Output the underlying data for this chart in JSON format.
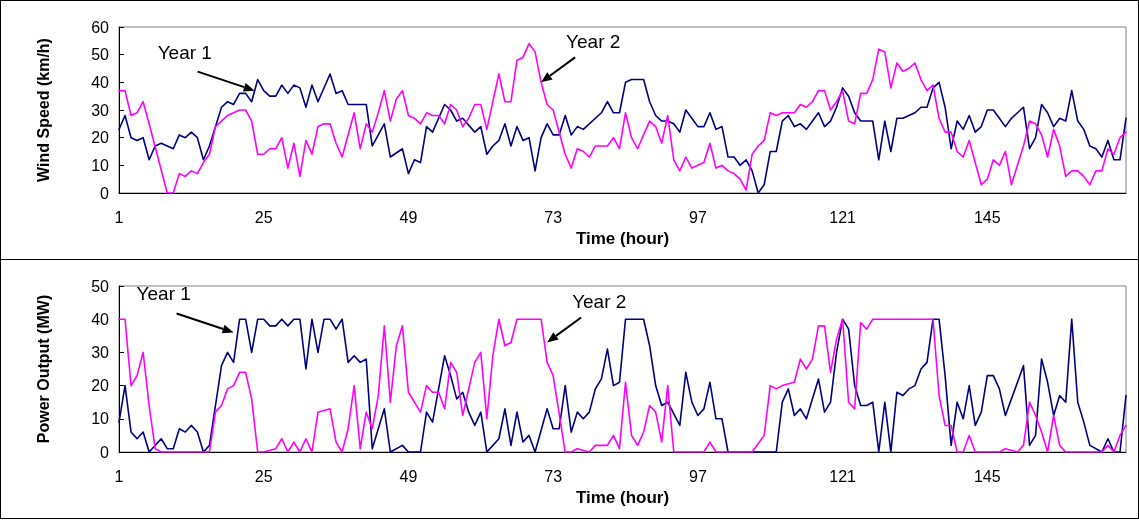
{
  "chart_data": [
    {
      "type": "line",
      "xlabel": "Time (hour)",
      "ylabel": "Wind Speed (km/h)",
      "xlim": [
        1,
        168
      ],
      "xticks": [
        1,
        25,
        49,
        73,
        97,
        121,
        145
      ],
      "ylim": [
        0,
        60
      ],
      "yticks": [
        0,
        10,
        20,
        30,
        40,
        50,
        60
      ],
      "grid": false,
      "marker": "none",
      "line_style": "solid",
      "annotations": [
        {
          "text": "Year 1",
          "x": 23.5,
          "y": 37
        },
        {
          "text": "Year 2",
          "x": 71,
          "y": 40
        }
      ],
      "series": [
        {
          "color": "#000080",
          "x": [
            1,
            2,
            3,
            4,
            5,
            6,
            7,
            8,
            9,
            10,
            11,
            12,
            13,
            14,
            15,
            16,
            18,
            19,
            20,
            21,
            22,
            23,
            24,
            25,
            26,
            27,
            28,
            29,
            30,
            31,
            32,
            33,
            34,
            36,
            37,
            38,
            39,
            40,
            41,
            42,
            43,
            45,
            46,
            48,
            49,
            50,
            51,
            52,
            53,
            55,
            56,
            57,
            58,
            60,
            61,
            62,
            63,
            64,
            65,
            66,
            67,
            68,
            69,
            70,
            71,
            72,
            73,
            74,
            75,
            76,
            77,
            78,
            81,
            82,
            83,
            84,
            85,
            86,
            88,
            89,
            90,
            91,
            92,
            93,
            94,
            95,
            96,
            97,
            98,
            99,
            100,
            101,
            102,
            103,
            104,
            105,
            106,
            107,
            108,
            109,
            110,
            111,
            112,
            113,
            114,
            115,
            116,
            117,
            118,
            119,
            120,
            121,
            122,
            123,
            124,
            126,
            127,
            128,
            129,
            130,
            131,
            132,
            133,
            134,
            135,
            136,
            137,
            138,
            139,
            140,
            141,
            142,
            143,
            144,
            145,
            146,
            147,
            148,
            149,
            150,
            151,
            152,
            153,
            154,
            155,
            156,
            157,
            158,
            159,
            160,
            161,
            162,
            163,
            164,
            165,
            166,
            167,
            168
          ],
          "values": [
            23,
            28,
            20,
            19,
            20,
            12,
            17,
            18,
            17,
            16,
            21,
            20,
            22,
            20,
            12,
            17,
            31,
            33,
            32,
            36,
            36,
            33,
            41,
            37,
            35,
            35,
            39,
            36,
            39,
            38,
            31,
            39,
            33,
            43,
            36,
            37,
            32,
            32,
            32,
            32,
            17,
            25,
            13,
            16,
            7,
            12,
            11,
            24,
            22,
            32,
            30,
            26,
            27,
            22,
            24,
            14,
            17,
            19,
            25,
            17,
            24,
            19,
            20,
            8,
            20,
            25,
            21,
            21,
            28,
            21,
            24,
            23,
            29,
            33,
            29,
            29,
            40,
            41,
            41,
            33,
            28,
            26,
            26,
            25,
            22,
            30,
            27,
            24,
            24,
            29,
            23,
            24,
            13,
            13,
            10,
            12,
            8,
            0,
            3,
            15,
            15,
            26,
            28,
            24,
            25,
            23,
            26,
            29,
            24,
            26,
            31,
            38,
            35,
            29,
            26,
            26,
            12,
            26,
            15,
            27,
            27,
            28,
            29,
            31,
            31,
            38,
            40,
            31,
            16,
            26,
            23,
            28,
            22,
            24,
            30,
            30,
            27,
            24,
            27,
            29,
            31,
            16,
            20,
            32,
            29,
            24,
            27,
            26,
            37,
            26,
            23,
            17,
            16,
            13,
            19,
            12,
            12,
            27
          ]
        },
        {
          "color": "#ff00ff",
          "x": [
            1,
            2,
            3,
            4,
            5,
            6,
            9,
            10,
            11,
            12,
            13,
            14,
            15,
            16,
            17,
            18,
            19,
            20,
            21,
            22,
            23,
            24,
            25,
            26,
            27,
            28,
            29,
            30,
            31,
            32,
            33,
            34,
            35,
            36,
            37,
            38,
            40,
            41,
            42,
            43,
            44,
            45,
            46,
            47,
            48,
            49,
            50,
            51,
            52,
            53,
            54,
            55,
            56,
            57,
            58,
            59,
            60,
            61,
            62,
            64,
            65,
            66,
            67,
            68,
            69,
            70,
            71,
            72,
            73,
            75,
            76,
            77,
            78,
            79,
            80,
            81,
            82,
            83,
            84,
            85,
            86,
            87,
            88,
            89,
            90,
            91,
            92,
            93,
            94,
            95,
            96,
            98,
            99,
            100,
            101,
            102,
            103,
            104,
            105,
            106,
            107,
            108,
            109,
            110,
            111,
            113,
            114,
            115,
            116,
            117,
            118,
            119,
            120,
            121,
            122,
            123,
            124,
            125,
            126,
            127,
            128,
            129,
            130,
            131,
            132,
            133,
            134,
            135,
            136,
            137,
            138,
            139,
            140,
            141,
            142,
            144,
            145,
            146,
            147,
            148,
            149,
            150,
            151,
            152,
            153,
            154,
            155,
            156,
            157,
            158,
            159,
            160,
            161,
            162,
            163,
            164,
            165,
            166,
            167,
            168
          ],
          "values": [
            37,
            37,
            28,
            29,
            33,
            25,
            0,
            0,
            7,
            6,
            8,
            7,
            11,
            14,
            24,
            26,
            28,
            29,
            30,
            30,
            26,
            14,
            14,
            16,
            16,
            20,
            9,
            18,
            6,
            19,
            14,
            24,
            25,
            25,
            18,
            13,
            29,
            16,
            25,
            22,
            29,
            37,
            26,
            34,
            37,
            28,
            27,
            25,
            29,
            28,
            28,
            25,
            32,
            30,
            24,
            27,
            32,
            32,
            23,
            43,
            33,
            33,
            48,
            49,
            54,
            51,
            40,
            32,
            30,
            14,
            9,
            16,
            15,
            13,
            17,
            17,
            17,
            20,
            16,
            29,
            20,
            16,
            21,
            26,
            24,
            18,
            28,
            12,
            8,
            13,
            9,
            11,
            18,
            9,
            10,
            8,
            7,
            5,
            1,
            14,
            17,
            19,
            29,
            28,
            29,
            29,
            32,
            31,
            33,
            37,
            37,
            30,
            33,
            37,
            26,
            25,
            36,
            36,
            41,
            52,
            51,
            38,
            47,
            44,
            45,
            47,
            41,
            37,
            39,
            27,
            22,
            22,
            15,
            13,
            19,
            3,
            5,
            12,
            10,
            15,
            3,
            10,
            17,
            26,
            25,
            21,
            13,
            23,
            17,
            6,
            8,
            8,
            6,
            3,
            8,
            8,
            16,
            14,
            20,
            22
          ]
        }
      ]
    },
    {
      "type": "line",
      "xlabel": "Time (hour)",
      "ylabel": "Power Output (MW)",
      "xlim": [
        1,
        168
      ],
      "xticks": [
        1,
        25,
        49,
        73,
        97,
        121,
        145
      ],
      "ylim": [
        0,
        50
      ],
      "yticks": [
        0,
        10,
        20,
        30,
        40,
        50
      ],
      "grid": false,
      "marker": "none",
      "line_style": "solid",
      "annotations": [
        {
          "text": "Year 1",
          "x": 20,
          "y": 36
        },
        {
          "text": "Year 2",
          "x": 72,
          "y": 33
        }
      ],
      "series": [
        {
          "color": "#000080",
          "x": [
            1,
            2,
            3,
            4,
            5,
            6,
            8,
            9,
            10,
            11,
            12,
            13,
            14,
            15,
            16,
            18,
            19,
            20,
            21,
            22,
            23,
            24,
            25,
            26,
            27,
            28,
            29,
            30,
            31,
            32,
            33,
            34,
            35,
            36,
            37,
            38,
            39,
            40,
            41,
            42,
            43,
            45,
            46,
            48,
            49,
            51,
            52,
            53,
            55,
            56,
            57,
            58,
            59,
            60,
            61,
            62,
            63,
            64,
            65,
            66,
            67,
            68,
            69,
            70,
            72,
            73,
            74,
            75,
            76,
            77,
            78,
            79,
            80,
            81,
            82,
            83,
            84,
            85,
            88,
            89,
            90,
            91,
            92,
            94,
            95,
            96,
            97,
            98,
            99,
            100,
            101,
            102,
            106,
            110,
            111,
            112,
            113,
            114,
            115,
            117,
            118,
            119,
            120,
            121,
            122,
            123,
            124,
            125,
            126,
            127,
            128,
            129,
            130,
            131,
            132,
            133,
            134,
            135,
            136,
            137,
            138,
            139,
            140,
            141,
            142,
            143,
            144,
            145,
            146,
            147,
            148,
            149,
            151,
            152,
            153,
            154,
            155,
            156,
            157,
            158,
            159,
            160,
            161,
            162,
            164,
            165,
            166,
            167,
            168
          ],
          "values": [
            9,
            20,
            6,
            4,
            6,
            0,
            4,
            1,
            1,
            7,
            6,
            8,
            6,
            0,
            2,
            26,
            30,
            27,
            40,
            40,
            30,
            40,
            40,
            38,
            38,
            40,
            38,
            40,
            40,
            25,
            40,
            30,
            40,
            40,
            37,
            40,
            27,
            29,
            27,
            28,
            1,
            13,
            0,
            2,
            0,
            0,
            12,
            9,
            29,
            23,
            16,
            18,
            12,
            8,
            12,
            0,
            2,
            4,
            13,
            2,
            12,
            3,
            5,
            0,
            13,
            7,
            7,
            20,
            6,
            12,
            10,
            12,
            19,
            22,
            31,
            20,
            21,
            40,
            40,
            32,
            20,
            14,
            15,
            8,
            24,
            15,
            11,
            13,
            21,
            10,
            10,
            0,
            0,
            0,
            15,
            19,
            11,
            13,
            10,
            22,
            12,
            15,
            30,
            40,
            37,
            20,
            14,
            14,
            15,
            0,
            15,
            0,
            18,
            17,
            19,
            20,
            25,
            27,
            40,
            40,
            23,
            2,
            15,
            10,
            20,
            8,
            12,
            23,
            23,
            19,
            11,
            16,
            26,
            2,
            5,
            28,
            21,
            11,
            17,
            15,
            40,
            15,
            9,
            2,
            0,
            4,
            0,
            0,
            17
          ]
        },
        {
          "color": "#ff00ff",
          "x": [
            1,
            2,
            3,
            4,
            5,
            6,
            7,
            8,
            16,
            17,
            18,
            19,
            20,
            21,
            22,
            23,
            24,
            25,
            27,
            28,
            29,
            30,
            31,
            32,
            33,
            34,
            36,
            37,
            38,
            39,
            40,
            41,
            42,
            43,
            44,
            45,
            46,
            47,
            48,
            49,
            51,
            52,
            53,
            54,
            55,
            56,
            57,
            58,
            60,
            61,
            62,
            63,
            64,
            65,
            66,
            67,
            71,
            72,
            73,
            75,
            76,
            77,
            79,
            80,
            81,
            82,
            83,
            84,
            85,
            86,
            87,
            88,
            89,
            90,
            91,
            92,
            93,
            98,
            99,
            100,
            106,
            108,
            109,
            110,
            111,
            113,
            114,
            115,
            116,
            117,
            118,
            119,
            120,
            121,
            122,
            123,
            124,
            125,
            126,
            136,
            137,
            138,
            139,
            140,
            141,
            142,
            143,
            147,
            148,
            150,
            151,
            152,
            153,
            154,
            155,
            156,
            157,
            158,
            164,
            165,
            166,
            167,
            168
          ],
          "values": [
            40,
            40,
            20,
            23,
            30,
            14,
            1,
            0,
            0,
            12,
            14,
            19,
            20,
            24,
            24,
            16,
            0,
            0,
            1,
            4,
            0,
            3,
            0,
            4,
            0,
            12,
            13,
            3,
            0,
            7,
            20,
            1,
            12,
            7,
            17,
            38,
            15,
            32,
            38,
            18,
            12,
            20,
            18,
            18,
            13,
            27,
            24,
            11,
            27,
            30,
            10,
            29,
            40,
            32,
            33,
            40,
            40,
            27,
            23,
            0,
            0,
            1,
            0,
            2,
            2,
            2,
            5,
            1,
            21,
            5,
            2,
            6,
            14,
            12,
            3,
            20,
            0,
            0,
            3,
            0,
            0,
            5,
            20,
            19,
            20,
            21,
            28,
            25,
            28,
            38,
            38,
            24,
            34,
            40,
            15,
            13,
            39,
            37,
            40,
            40,
            17,
            8,
            8,
            0,
            0,
            5,
            0,
            0,
            1,
            0,
            2,
            15,
            11,
            6,
            0,
            11,
            2,
            0,
            0,
            2,
            0,
            5,
            8
          ]
        }
      ]
    }
  ]
}
